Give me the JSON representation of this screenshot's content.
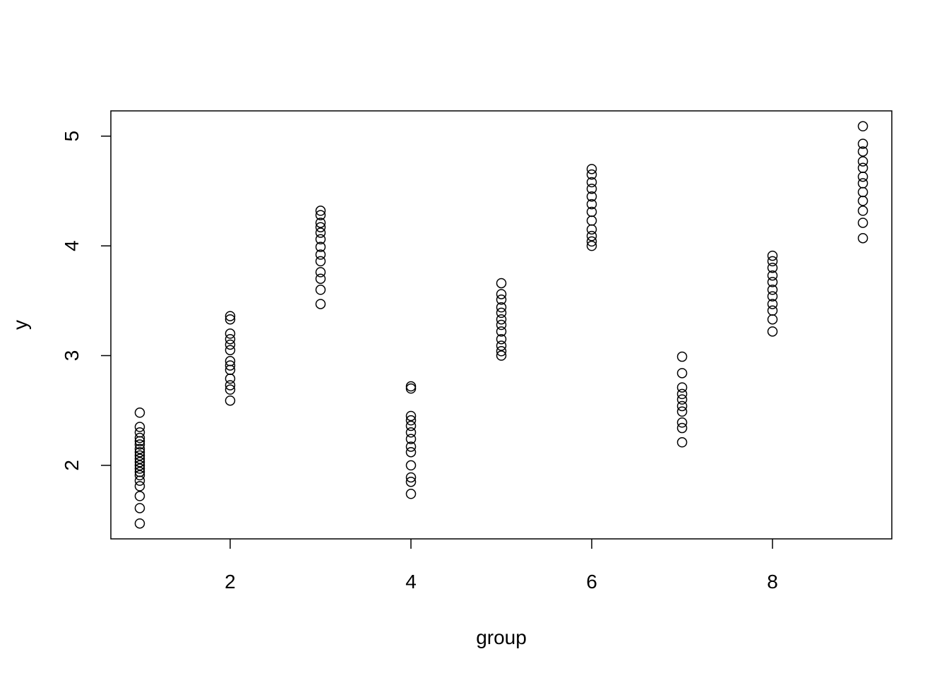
{
  "chart_data": {
    "type": "scatter",
    "xlabel": "group",
    "ylabel": "y",
    "x": [
      1,
      1,
      1,
      1,
      1,
      1,
      1,
      1,
      1,
      1,
      1,
      1,
      1,
      1,
      1,
      1,
      1,
      1,
      1,
      1,
      2,
      2,
      2,
      2,
      2,
      2,
      2,
      2,
      2,
      2,
      2,
      2,
      2,
      3,
      3,
      3,
      3,
      3,
      3,
      3,
      3,
      3,
      3,
      3,
      3,
      3,
      4,
      4,
      4,
      4,
      4,
      4,
      4,
      4,
      4,
      4,
      4,
      4,
      4,
      5,
      5,
      5,
      5,
      5,
      5,
      5,
      5,
      5,
      5,
      5,
      5,
      6,
      6,
      6,
      6,
      6,
      6,
      6,
      6,
      6,
      6,
      6,
      6,
      7,
      7,
      7,
      7,
      7,
      7,
      7,
      7,
      7,
      7,
      8,
      8,
      8,
      8,
      8,
      8,
      8,
      8,
      8,
      8,
      8,
      9,
      9,
      9,
      9,
      9,
      9,
      9,
      9,
      9,
      9,
      9,
      9
    ],
    "values": [
      2.48,
      2.35,
      2.3,
      2.25,
      2.22,
      2.19,
      2.15,
      2.12,
      2.09,
      2.06,
      2.03,
      2.0,
      1.97,
      1.94,
      1.91,
      1.86,
      1.81,
      1.72,
      1.61,
      1.47,
      3.36,
      3.33,
      3.2,
      3.15,
      3.1,
      3.05,
      2.95,
      2.91,
      2.87,
      2.79,
      2.73,
      2.69,
      2.59,
      4.32,
      4.28,
      4.21,
      4.17,
      4.12,
      4.06,
      3.99,
      3.92,
      3.86,
      3.76,
      3.7,
      3.6,
      3.47,
      2.72,
      2.7,
      2.45,
      2.41,
      2.36,
      2.3,
      2.24,
      2.17,
      2.12,
      2.0,
      1.89,
      1.85,
      1.74,
      3.66,
      3.56,
      3.51,
      3.44,
      3.39,
      3.33,
      3.28,
      3.22,
      3.15,
      3.09,
      3.04,
      3.0,
      4.7,
      4.65,
      4.58,
      4.52,
      4.45,
      4.38,
      4.31,
      4.23,
      4.15,
      4.09,
      4.04,
      4.0,
      2.99,
      2.84,
      2.71,
      2.65,
      2.6,
      2.54,
      2.49,
      2.39,
      2.34,
      2.21,
      3.91,
      3.86,
      3.8,
      3.73,
      3.67,
      3.6,
      3.54,
      3.47,
      3.41,
      3.33,
      3.22,
      5.09,
      4.93,
      4.86,
      4.77,
      4.71,
      4.63,
      4.57,
      4.49,
      4.41,
      4.32,
      4.21,
      4.07
    ],
    "color": "#000000",
    "xlim": [
      0.68,
      9.32
    ],
    "ylim": [
      1.33,
      5.23
    ],
    "xticks": [
      2,
      4,
      6,
      8
    ],
    "yticks": [
      2,
      3,
      4,
      5
    ]
  }
}
